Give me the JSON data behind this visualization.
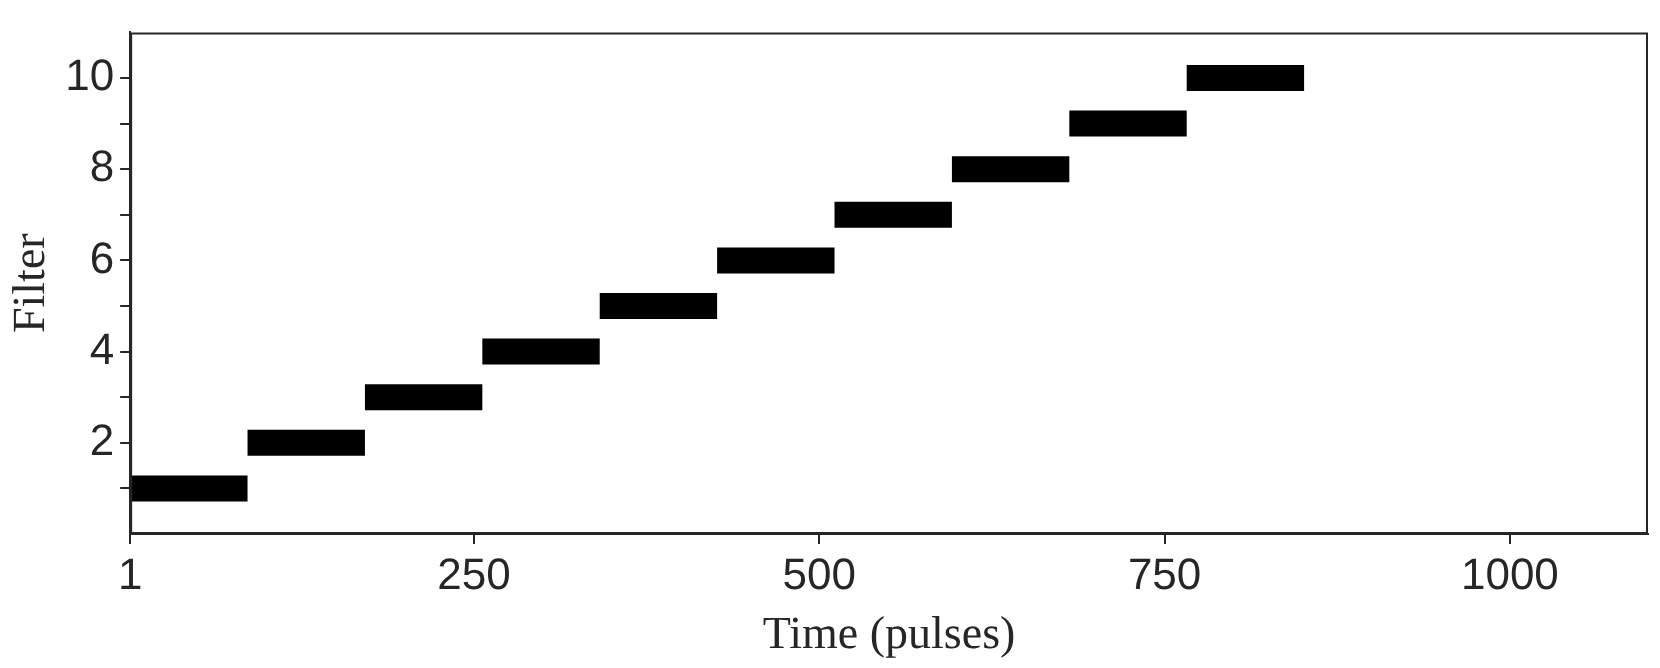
{
  "chart_data": {
    "type": "line",
    "xlabel": "Time (pulses)",
    "ylabel": "Filter",
    "series": [
      {
        "color": "#000000",
        "x": [
          1,
          86
        ],
        "values": [
          1,
          1
        ]
      },
      {
        "color": "#000000",
        "x": [
          86,
          171
        ],
        "values": [
          2,
          2
        ]
      },
      {
        "color": "#000000",
        "x": [
          171,
          256
        ],
        "values": [
          3,
          3
        ]
      },
      {
        "color": "#000000",
        "x": [
          256,
          341
        ],
        "values": [
          4,
          4
        ]
      },
      {
        "color": "#000000",
        "x": [
          341,
          426
        ],
        "values": [
          5,
          5
        ]
      },
      {
        "color": "#000000",
        "x": [
          426,
          511
        ],
        "values": [
          6,
          6
        ]
      },
      {
        "color": "#000000",
        "x": [
          511,
          596
        ],
        "values": [
          7,
          7
        ]
      },
      {
        "color": "#000000",
        "x": [
          596,
          681
        ],
        "values": [
          8,
          8
        ]
      },
      {
        "color": "#000000",
        "x": [
          681,
          766
        ],
        "values": [
          9,
          9
        ]
      },
      {
        "color": "#000000",
        "x": [
          766,
          851
        ],
        "values": [
          10,
          10
        ]
      }
    ],
    "xlim": [
      1,
      1100
    ],
    "xticks": [
      1,
      250,
      500,
      750,
      1000
    ],
    "ylim": [
      0,
      11
    ],
    "yticks": [
      {
        "value": 1,
        "label": null
      },
      2,
      {
        "value": 3,
        "label": null
      },
      4,
      {
        "value": 5,
        "label": null
      },
      6,
      {
        "value": 7,
        "label": null
      },
      8,
      {
        "value": 9,
        "label": null
      },
      10
    ],
    "grid": false,
    "legend": false,
    "marker": "none",
    "line_style": "solid"
  }
}
